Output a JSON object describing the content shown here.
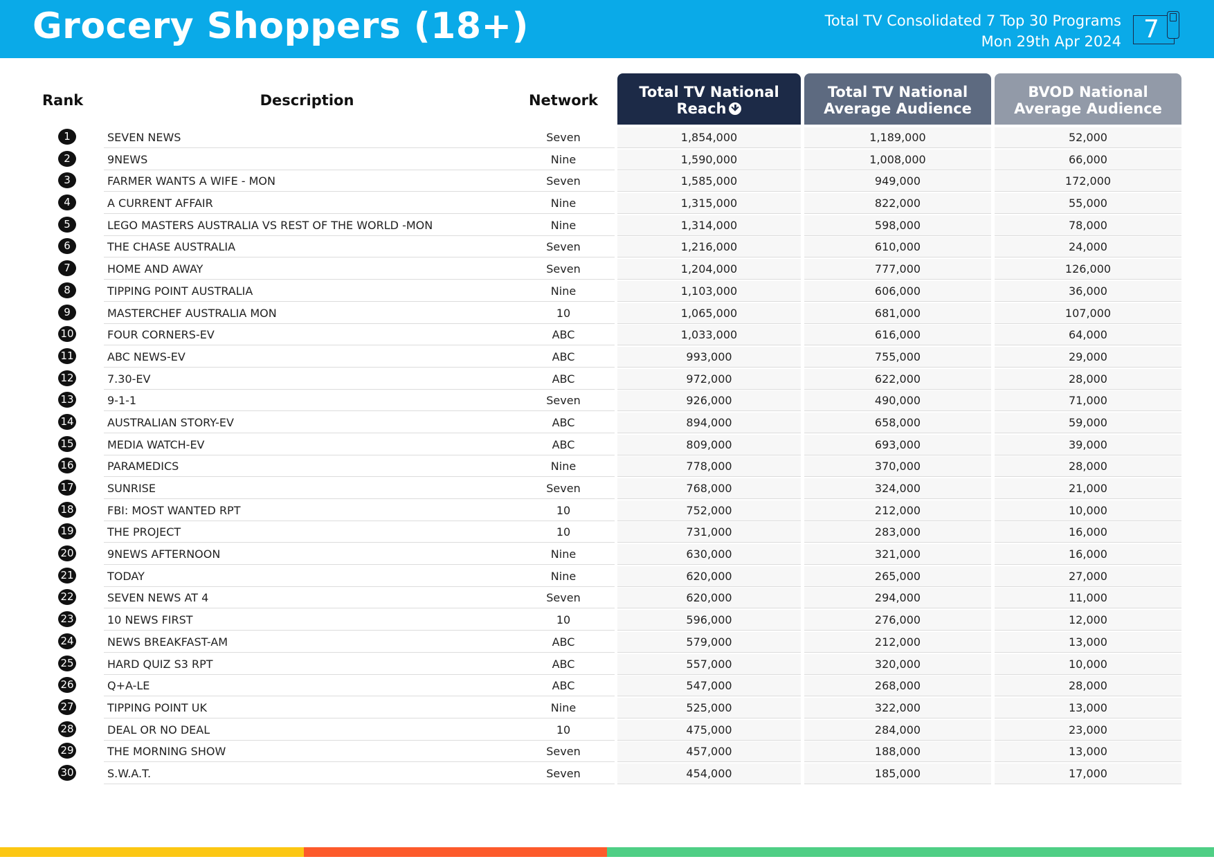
{
  "header": {
    "title": "Grocery Shoppers (18+)",
    "subtitle_line1": "Total TV Consolidated 7 Top 30 Programs",
    "subtitle_line2": "Mon 29th Apr 2024",
    "logo_text": "7",
    "bg_color": "#0aaae8"
  },
  "table": {
    "headers": {
      "rank": "Rank",
      "description": "Description",
      "network": "Network",
      "reach": "Total TV National Reach",
      "reach_line1": "Total TV National",
      "reach_line2": "Reach",
      "avg_line1": "Total TV National",
      "avg_line2": "Average Audience",
      "bvod_line1": "BVOD National",
      "bvod_line2": "Average Audience"
    },
    "sort_icon": "arrow-circle-down-icon",
    "rows": [
      {
        "rank": "1",
        "description": "SEVEN NEWS",
        "network": "Seven",
        "reach": "1,854,000",
        "avg": "1,189,000",
        "bvod": "52,000"
      },
      {
        "rank": "2",
        "description": "9NEWS",
        "network": "Nine",
        "reach": "1,590,000",
        "avg": "1,008,000",
        "bvod": "66,000"
      },
      {
        "rank": "3",
        "description": "FARMER WANTS A WIFE - MON",
        "network": "Seven",
        "reach": "1,585,000",
        "avg": "949,000",
        "bvod": "172,000"
      },
      {
        "rank": "4",
        "description": "A CURRENT AFFAIR",
        "network": "Nine",
        "reach": "1,315,000",
        "avg": "822,000",
        "bvod": "55,000"
      },
      {
        "rank": "5",
        "description": "LEGO MASTERS AUSTRALIA VS REST OF THE WORLD -MON",
        "network": "Nine",
        "reach": "1,314,000",
        "avg": "598,000",
        "bvod": "78,000"
      },
      {
        "rank": "6",
        "description": "THE CHASE AUSTRALIA",
        "network": "Seven",
        "reach": "1,216,000",
        "avg": "610,000",
        "bvod": "24,000"
      },
      {
        "rank": "7",
        "description": "HOME AND AWAY",
        "network": "Seven",
        "reach": "1,204,000",
        "avg": "777,000",
        "bvod": "126,000"
      },
      {
        "rank": "8",
        "description": "TIPPING POINT AUSTRALIA",
        "network": "Nine",
        "reach": "1,103,000",
        "avg": "606,000",
        "bvod": "36,000"
      },
      {
        "rank": "9",
        "description": "MASTERCHEF AUSTRALIA MON",
        "network": "10",
        "reach": "1,065,000",
        "avg": "681,000",
        "bvod": "107,000"
      },
      {
        "rank": "10",
        "description": "FOUR CORNERS-EV",
        "network": "ABC",
        "reach": "1,033,000",
        "avg": "616,000",
        "bvod": "64,000"
      },
      {
        "rank": "11",
        "description": "ABC NEWS-EV",
        "network": "ABC",
        "reach": "993,000",
        "avg": "755,000",
        "bvod": "29,000"
      },
      {
        "rank": "12",
        "description": "7.30-EV",
        "network": "ABC",
        "reach": "972,000",
        "avg": "622,000",
        "bvod": "28,000"
      },
      {
        "rank": "13",
        "description": "9-1-1",
        "network": "Seven",
        "reach": "926,000",
        "avg": "490,000",
        "bvod": "71,000"
      },
      {
        "rank": "14",
        "description": "AUSTRALIAN STORY-EV",
        "network": "ABC",
        "reach": "894,000",
        "avg": "658,000",
        "bvod": "59,000"
      },
      {
        "rank": "15",
        "description": "MEDIA WATCH-EV",
        "network": "ABC",
        "reach": "809,000",
        "avg": "693,000",
        "bvod": "39,000"
      },
      {
        "rank": "16",
        "description": "PARAMEDICS",
        "network": "Nine",
        "reach": "778,000",
        "avg": "370,000",
        "bvod": "28,000"
      },
      {
        "rank": "17",
        "description": "SUNRISE",
        "network": "Seven",
        "reach": "768,000",
        "avg": "324,000",
        "bvod": "21,000"
      },
      {
        "rank": "18",
        "description": "FBI: MOST WANTED RPT",
        "network": "10",
        "reach": "752,000",
        "avg": "212,000",
        "bvod": "10,000"
      },
      {
        "rank": "19",
        "description": "THE PROJECT",
        "network": "10",
        "reach": "731,000",
        "avg": "283,000",
        "bvod": "16,000"
      },
      {
        "rank": "20",
        "description": "9NEWS AFTERNOON",
        "network": "Nine",
        "reach": "630,000",
        "avg": "321,000",
        "bvod": "16,000"
      },
      {
        "rank": "21",
        "description": "TODAY",
        "network": "Nine",
        "reach": "620,000",
        "avg": "265,000",
        "bvod": "27,000"
      },
      {
        "rank": "22",
        "description": "SEVEN NEWS AT 4",
        "network": "Seven",
        "reach": "620,000",
        "avg": "294,000",
        "bvod": "11,000"
      },
      {
        "rank": "23",
        "description": "10 NEWS FIRST",
        "network": "10",
        "reach": "596,000",
        "avg": "276,000",
        "bvod": "12,000"
      },
      {
        "rank": "24",
        "description": "NEWS BREAKFAST-AM",
        "network": "ABC",
        "reach": "579,000",
        "avg": "212,000",
        "bvod": "13,000"
      },
      {
        "rank": "25",
        "description": "HARD QUIZ S3 RPT",
        "network": "ABC",
        "reach": "557,000",
        "avg": "320,000",
        "bvod": "10,000"
      },
      {
        "rank": "26",
        "description": "Q+A-LE",
        "network": "ABC",
        "reach": "547,000",
        "avg": "268,000",
        "bvod": "28,000"
      },
      {
        "rank": "27",
        "description": "TIPPING POINT UK",
        "network": "Nine",
        "reach": "525,000",
        "avg": "322,000",
        "bvod": "13,000"
      },
      {
        "rank": "28",
        "description": "DEAL OR NO DEAL",
        "network": "10",
        "reach": "475,000",
        "avg": "284,000",
        "bvod": "23,000"
      },
      {
        "rank": "29",
        "description": "THE MORNING SHOW",
        "network": "Seven",
        "reach": "457,000",
        "avg": "188,000",
        "bvod": "13,000"
      },
      {
        "rank": "30",
        "description": "S.W.A.T.",
        "network": "Seven",
        "reach": "454,000",
        "avg": "185,000",
        "bvod": "17,000"
      }
    ]
  },
  "colors": {
    "reach_header": "#1c2a47",
    "avg_header": "#5d6a80",
    "bvod_header": "#929aa8",
    "footer_yellow": "#fcc713",
    "footer_orange": "#fd5a2b",
    "footer_green": "#4fcf85"
  }
}
